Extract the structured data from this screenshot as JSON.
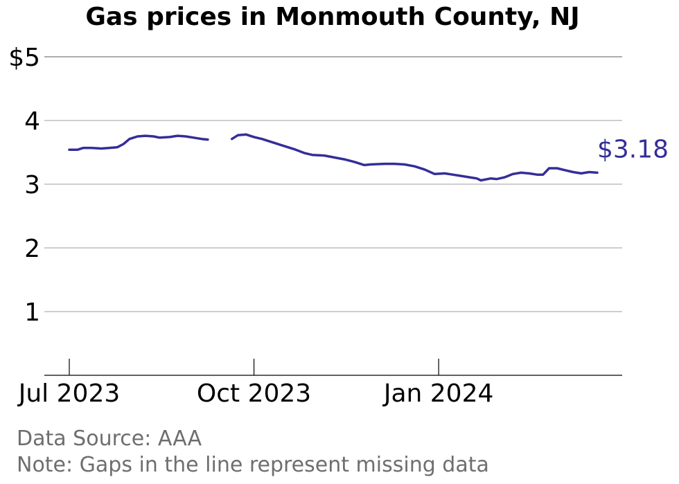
{
  "chart_data": {
    "type": "line",
    "title": "Gas prices in Monmouth County, NJ",
    "y_ticks": [
      {
        "value": 1,
        "label": "1"
      },
      {
        "value": 2,
        "label": "2"
      },
      {
        "value": 3,
        "label": "3"
      },
      {
        "value": 4,
        "label": "4"
      },
      {
        "value": 5,
        "label": "$5"
      }
    ],
    "ylim": [
      0,
      5
    ],
    "x_ticks": [
      {
        "date": "2023-07-01",
        "label": "Jul 2023"
      },
      {
        "date": "2023-10-01",
        "label": "Oct 2023"
      },
      {
        "date": "2024-01-01",
        "label": "Jan 2024"
      }
    ],
    "xlim": [
      "2023-06-20",
      "2024-03-30"
    ],
    "grid": true,
    "color": "#332e99",
    "end_label": "$3.18",
    "series": [
      {
        "segments": [
          [
            [
              "2023-07-01",
              3.54
            ],
            [
              "2023-07-05",
              3.54
            ],
            [
              "2023-07-08",
              3.57
            ],
            [
              "2023-07-12",
              3.57
            ],
            [
              "2023-07-17",
              3.56
            ],
            [
              "2023-07-21",
              3.57
            ],
            [
              "2023-07-25",
              3.58
            ],
            [
              "2023-07-28",
              3.63
            ],
            [
              "2023-07-31",
              3.71
            ],
            [
              "2023-08-04",
              3.75
            ],
            [
              "2023-08-08",
              3.76
            ],
            [
              "2023-08-12",
              3.75
            ],
            [
              "2023-08-15",
              3.73
            ],
            [
              "2023-08-20",
              3.74
            ],
            [
              "2023-08-24",
              3.76
            ],
            [
              "2023-08-28",
              3.75
            ],
            [
              "2023-09-01",
              3.73
            ],
            [
              "2023-09-05",
              3.71
            ],
            [
              "2023-09-08",
              3.7
            ]
          ],
          [
            [
              "2023-09-20",
              3.71
            ],
            [
              "2023-09-23",
              3.77
            ],
            [
              "2023-09-27",
              3.78
            ],
            [
              "2023-10-01",
              3.74
            ],
            [
              "2023-10-05",
              3.71
            ],
            [
              "2023-10-10",
              3.66
            ],
            [
              "2023-10-15",
              3.61
            ],
            [
              "2023-10-21",
              3.55
            ],
            [
              "2023-10-26",
              3.49
            ],
            [
              "2023-10-30",
              3.46
            ],
            [
              "2023-11-05",
              3.45
            ],
            [
              "2023-11-10",
              3.42
            ],
            [
              "2023-11-15",
              3.39
            ],
            [
              "2023-11-20",
              3.35
            ],
            [
              "2023-11-25",
              3.3
            ],
            [
              "2023-11-28",
              3.31
            ],
            [
              "2023-12-05",
              3.32
            ],
            [
              "2023-12-10",
              3.32
            ],
            [
              "2023-12-15",
              3.31
            ],
            [
              "2023-12-20",
              3.28
            ],
            [
              "2023-12-25",
              3.23
            ],
            [
              "2023-12-30",
              3.16
            ],
            [
              "2024-01-04",
              3.17
            ],
            [
              "2024-01-08",
              3.15
            ],
            [
              "2024-01-12",
              3.13
            ],
            [
              "2024-01-16",
              3.11
            ],
            [
              "2024-01-20",
              3.09
            ],
            [
              "2024-01-22",
              3.06
            ],
            [
              "2024-01-27",
              3.09
            ],
            [
              "2024-01-30",
              3.08
            ],
            [
              "2024-02-03",
              3.11
            ],
            [
              "2024-02-07",
              3.16
            ],
            [
              "2024-02-11",
              3.18
            ],
            [
              "2024-02-15",
              3.17
            ],
            [
              "2024-02-19",
              3.15
            ],
            [
              "2024-02-22",
              3.15
            ],
            [
              "2024-02-25",
              3.25
            ],
            [
              "2024-02-29",
              3.25
            ],
            [
              "2024-03-04",
              3.22
            ],
            [
              "2024-03-08",
              3.19
            ],
            [
              "2024-03-12",
              3.17
            ],
            [
              "2024-03-16",
              3.19
            ],
            [
              "2024-03-20",
              3.18
            ]
          ]
        ]
      }
    ]
  },
  "footer": {
    "source": "Data Source: AAA",
    "note": "Note: Gaps in the line represent missing data"
  }
}
